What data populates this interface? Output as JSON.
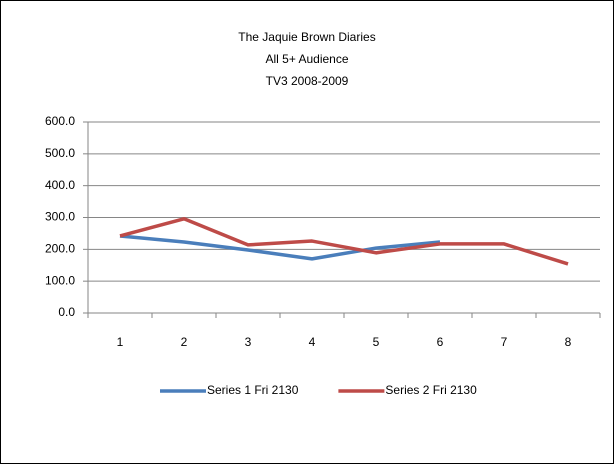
{
  "chart_data": {
    "type": "line",
    "title": "The Jaquie Brown Diaries",
    "subtitle": [
      "All 5+ Audience",
      "TV3 2008-2009"
    ],
    "categories": [
      "1",
      "2",
      "3",
      "4",
      "5",
      "6",
      "7",
      "8"
    ],
    "series": [
      {
        "name": "Series 1 Fri 2130",
        "color": "#4a7ebb",
        "values": [
          242,
          223,
          198,
          170,
          204,
          223,
          null,
          null
        ]
      },
      {
        "name": "Series 2 Fri 2130",
        "color": "#be4b48",
        "values": [
          242,
          296,
          214,
          226,
          189,
          217,
          217,
          154
        ]
      }
    ],
    "ylim": [
      0,
      600
    ],
    "yticks": [
      {
        "value": 0,
        "label": "0.0"
      },
      {
        "value": 100,
        "label": "100.0"
      },
      {
        "value": 200,
        "label": "200.0"
      },
      {
        "value": 300,
        "label": "300.0"
      },
      {
        "value": 400,
        "label": "400.0"
      },
      {
        "value": 500,
        "label": "500.0"
      },
      {
        "value": 600,
        "label": "600.0"
      }
    ],
    "grid": true,
    "legend": "bottom"
  }
}
